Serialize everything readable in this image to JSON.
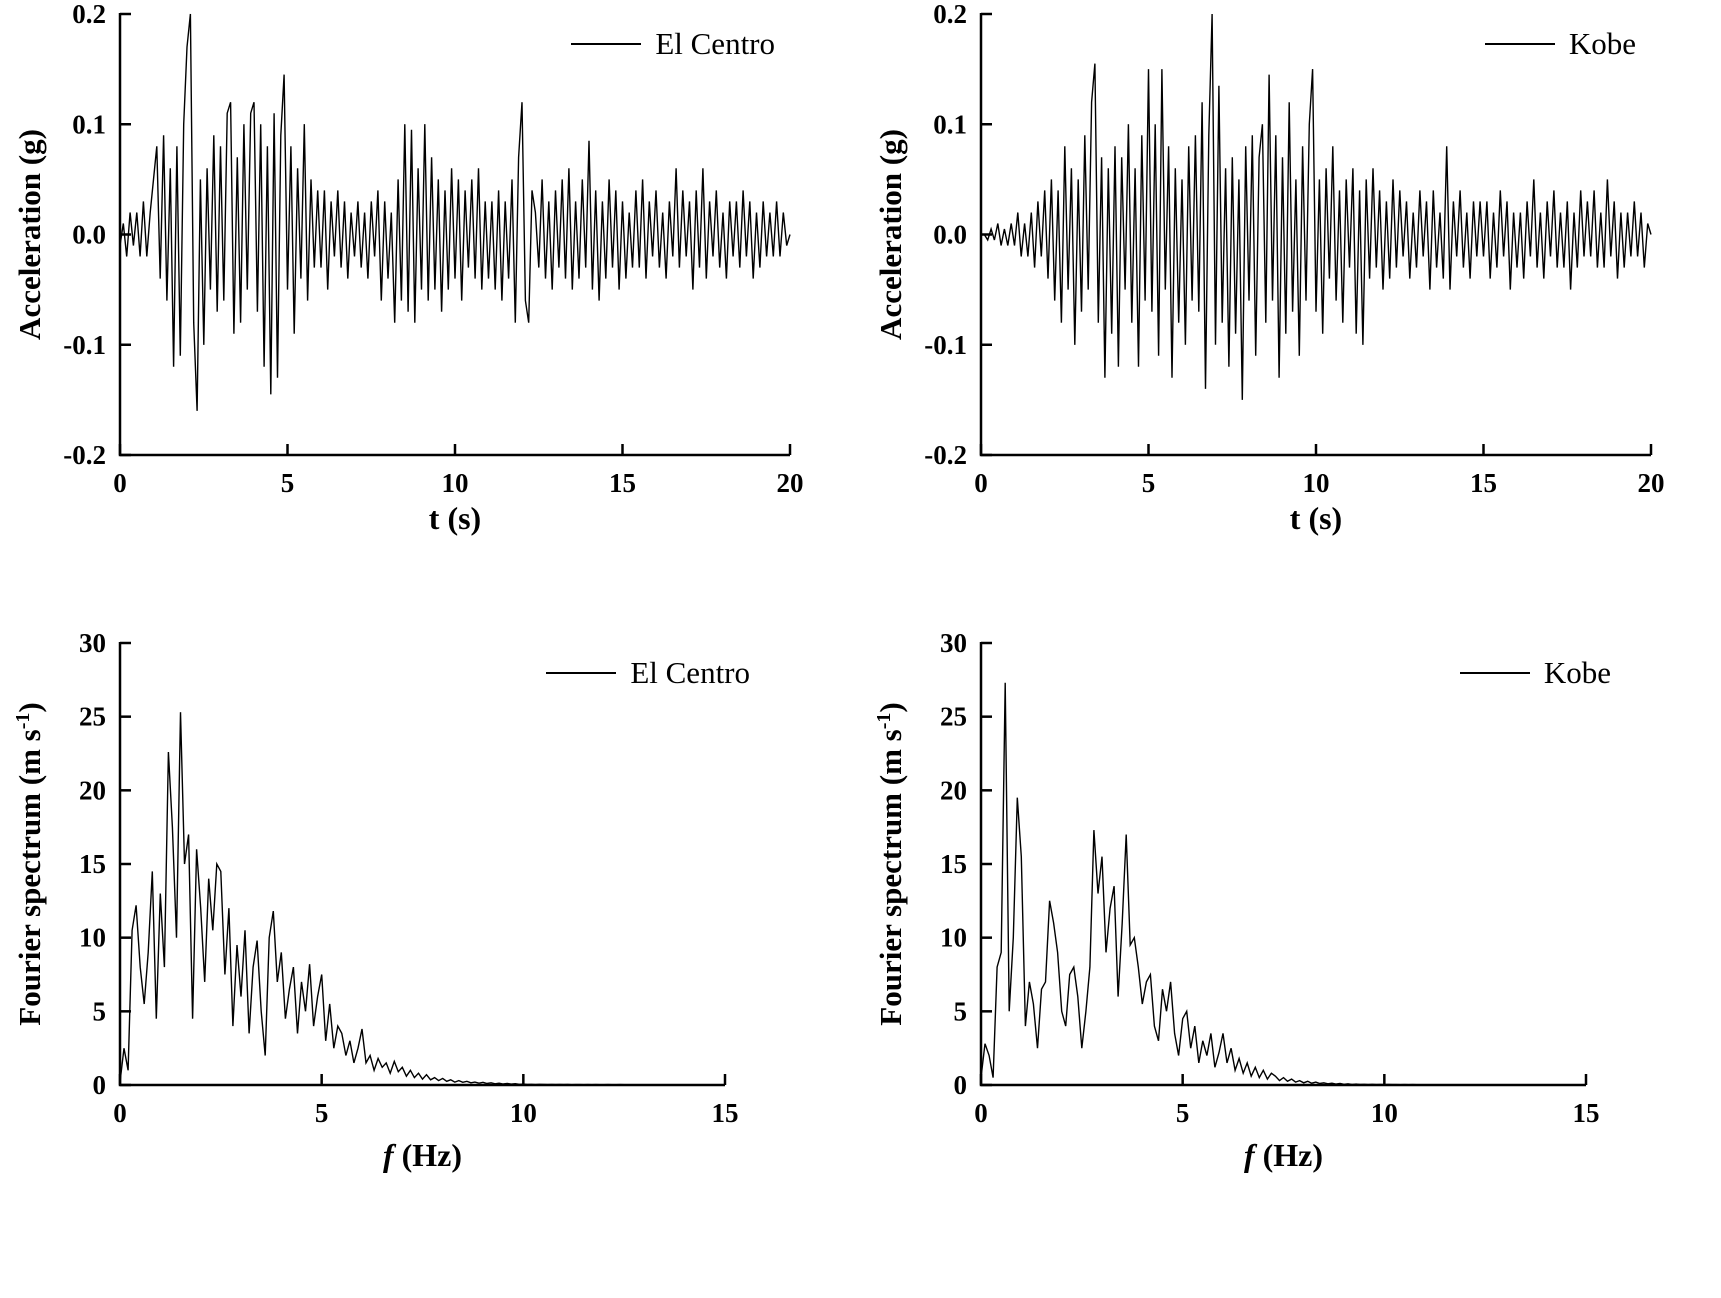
{
  "page": {
    "background": "#ffffff",
    "line_color": "#000000"
  },
  "chart_data": [
    {
      "id": "accel-el-centro",
      "type": "line",
      "legend": "El Centro",
      "xlabel_italic": "",
      "xlabel_rest": "t (s)",
      "ylabel_main": "Acceleration (g)",
      "ylabel_sup": "",
      "ylabel_close": "",
      "xlim": [
        0,
        20
      ],
      "ylim": [
        -0.2,
        0.2
      ],
      "xticks": {
        "values": [
          0,
          5,
          10,
          15,
          20
        ],
        "labels": [
          "0",
          "5",
          "10",
          "15",
          "20"
        ]
      },
      "yticks": {
        "values": [
          -0.2,
          -0.1,
          0,
          0.1,
          0.2
        ],
        "labels": [
          "-0.2",
          "-0.1",
          "0.0",
          "0.1",
          "0.2"
        ]
      },
      "grid": false,
      "legend_position": "top-right",
      "series": {
        "name": "El Centro",
        "x_start": 0,
        "x_step": 0.1,
        "values": [
          -0.01,
          0.01,
          -0.02,
          0.02,
          -0.01,
          0.02,
          -0.02,
          0.03,
          -0.02,
          0.02,
          0.05,
          0.08,
          -0.04,
          0.09,
          -0.06,
          0.06,
          -0.12,
          0.08,
          -0.11,
          0.1,
          0.17,
          0.2,
          -0.08,
          -0.16,
          0.05,
          -0.1,
          0.06,
          -0.05,
          0.09,
          -0.07,
          0.08,
          -0.06,
          0.11,
          0.12,
          -0.09,
          0.07,
          -0.08,
          0.1,
          -0.05,
          0.11,
          0.12,
          -0.07,
          0.1,
          -0.12,
          0.08,
          -0.145,
          0.11,
          -0.13,
          0.09,
          0.145,
          -0.05,
          0.08,
          -0.09,
          0.06,
          -0.04,
          0.1,
          -0.06,
          0.05,
          -0.03,
          0.04,
          -0.03,
          0.04,
          -0.05,
          0.03,
          -0.02,
          0.04,
          -0.03,
          0.03,
          -0.04,
          0.02,
          -0.02,
          0.03,
          -0.03,
          0.02,
          -0.04,
          0.03,
          -0.02,
          0.04,
          -0.06,
          0.03,
          -0.04,
          0.02,
          -0.08,
          0.05,
          -0.06,
          0.1,
          -0.07,
          0.095,
          -0.08,
          0.06,
          -0.05,
          0.1,
          -0.06,
          0.07,
          -0.05,
          0.05,
          -0.07,
          0.04,
          -0.05,
          0.06,
          -0.04,
          0.05,
          -0.06,
          0.04,
          -0.03,
          0.05,
          -0.04,
          0.06,
          -0.05,
          0.03,
          -0.04,
          0.03,
          -0.05,
          0.04,
          -0.06,
          0.03,
          -0.04,
          0.05,
          -0.08,
          0.07,
          0.12,
          -0.06,
          -0.08,
          0.04,
          0.02,
          -0.03,
          0.05,
          -0.04,
          0.03,
          -0.05,
          0.04,
          -0.03,
          0.05,
          -0.04,
          0.06,
          -0.05,
          0.03,
          -0.04,
          0.05,
          -0.03,
          0.085,
          -0.05,
          0.04,
          -0.06,
          0.03,
          -0.04,
          0.05,
          -0.03,
          0.04,
          -0.05,
          0.03,
          -0.04,
          0.02,
          -0.03,
          0.04,
          -0.03,
          0.05,
          -0.04,
          0.03,
          -0.02,
          0.04,
          -0.03,
          0.02,
          -0.04,
          0.03,
          -0.02,
          0.06,
          -0.03,
          0.04,
          -0.02,
          0.03,
          -0.05,
          0.04,
          -0.03,
          0.06,
          -0.04,
          0.03,
          -0.02,
          0.04,
          -0.03,
          0.02,
          -0.04,
          0.03,
          -0.02,
          0.03,
          -0.03,
          0.04,
          -0.02,
          0.03,
          -0.04,
          0.02,
          -0.03,
          0.03,
          -0.02,
          0.02,
          -0.02,
          0.03,
          -0.02,
          0.02,
          -0.01,
          0.0
        ]
      }
    },
    {
      "id": "accel-kobe",
      "type": "line",
      "legend": "Kobe",
      "xlabel_italic": "",
      "xlabel_rest": "t (s)",
      "ylabel_main": "Acceleration (g)",
      "ylabel_sup": "",
      "ylabel_close": "",
      "xlim": [
        0,
        20
      ],
      "ylim": [
        -0.2,
        0.2
      ],
      "xticks": {
        "values": [
          0,
          5,
          10,
          15,
          20
        ],
        "labels": [
          "0",
          "5",
          "10",
          "15",
          "20"
        ]
      },
      "yticks": {
        "values": [
          -0.2,
          -0.1,
          0,
          0.1,
          0.2
        ],
        "labels": [
          "-0.2",
          "-0.1",
          "0.0",
          "0.1",
          "0.2"
        ]
      },
      "grid": false,
      "legend_position": "top-right",
      "series": {
        "name": "Kobe",
        "x_start": 0,
        "x_step": 0.1,
        "values": [
          0.0,
          0.0,
          -0.005,
          0.005,
          -0.005,
          0.01,
          -0.01,
          0.005,
          -0.01,
          0.01,
          -0.01,
          0.02,
          -0.02,
          0.01,
          -0.02,
          0.02,
          -0.03,
          0.03,
          -0.02,
          0.04,
          -0.04,
          0.05,
          -0.06,
          0.04,
          -0.08,
          0.08,
          -0.05,
          0.06,
          -0.1,
          0.05,
          -0.07,
          0.09,
          -0.05,
          0.12,
          0.155,
          -0.08,
          0.07,
          -0.13,
          0.06,
          -0.09,
          0.08,
          -0.12,
          0.07,
          -0.05,
          0.1,
          -0.08,
          0.06,
          -0.12,
          0.09,
          -0.06,
          0.15,
          -0.07,
          0.1,
          -0.11,
          0.15,
          -0.05,
          0.08,
          -0.13,
          0.06,
          -0.08,
          0.05,
          -0.1,
          0.08,
          -0.06,
          0.09,
          -0.07,
          0.12,
          -0.14,
          0.09,
          0.2,
          -0.1,
          0.135,
          -0.08,
          0.06,
          -0.12,
          0.07,
          -0.09,
          0.05,
          -0.15,
          0.08,
          -0.06,
          0.09,
          -0.11,
          0.07,
          0.1,
          -0.08,
          0.145,
          -0.06,
          0.09,
          -0.13,
          0.07,
          -0.09,
          0.12,
          -0.07,
          0.05,
          -0.11,
          0.08,
          -0.06,
          0.1,
          0.15,
          -0.07,
          0.05,
          -0.09,
          0.06,
          -0.04,
          0.08,
          -0.06,
          0.04,
          -0.08,
          0.05,
          -0.03,
          0.06,
          -0.09,
          0.04,
          -0.1,
          0.05,
          -0.04,
          0.06,
          -0.03,
          0.04,
          -0.05,
          0.03,
          -0.04,
          0.05,
          -0.03,
          0.04,
          -0.02,
          0.03,
          -0.04,
          0.02,
          -0.03,
          0.04,
          -0.02,
          0.03,
          -0.05,
          0.04,
          -0.03,
          0.02,
          -0.04,
          0.08,
          -0.05,
          0.03,
          -0.02,
          0.04,
          -0.03,
          0.02,
          -0.04,
          0.03,
          -0.02,
          0.03,
          -0.02,
          0.03,
          -0.04,
          0.02,
          -0.03,
          0.04,
          -0.02,
          0.03,
          -0.05,
          0.02,
          -0.03,
          0.02,
          -0.04,
          0.03,
          -0.02,
          0.05,
          -0.03,
          0.02,
          -0.04,
          0.03,
          -0.02,
          0.04,
          -0.03,
          0.02,
          -0.03,
          0.03,
          -0.05,
          0.02,
          -0.03,
          0.04,
          -0.02,
          0.03,
          -0.02,
          0.04,
          -0.03,
          0.02,
          -0.03,
          0.05,
          -0.02,
          0.03,
          -0.04,
          0.02,
          -0.03,
          0.02,
          -0.02,
          0.03,
          -0.02,
          0.02,
          -0.03,
          0.01,
          0.0
        ]
      }
    },
    {
      "id": "fourier-el-centro",
      "type": "line",
      "legend": "El Centro",
      "xlabel_italic": "f",
      "xlabel_rest": " (Hz)",
      "ylabel_main": "Fourier spectrum  (m s",
      "ylabel_sup": "-1",
      "ylabel_close": ")",
      "xlim": [
        0,
        15
      ],
      "ylim": [
        0,
        30
      ],
      "xticks": {
        "values": [
          0,
          5,
          10,
          15
        ],
        "labels": [
          "0",
          "5",
          "10",
          "15"
        ]
      },
      "yticks": {
        "values": [
          0,
          5,
          10,
          15,
          20,
          25,
          30
        ],
        "labels": [
          "0",
          "5",
          "10",
          "15",
          "20",
          "25",
          "30"
        ]
      },
      "grid": false,
      "legend_position": "top-right",
      "series": {
        "name": "El Centro",
        "x_start": 0,
        "x_step": 0.1,
        "values": [
          0.2,
          2.5,
          1.0,
          10.5,
          12.2,
          8.0,
          5.5,
          9.0,
          14.5,
          4.5,
          13.0,
          8.0,
          22.6,
          17.5,
          10.0,
          25.3,
          15.0,
          17.0,
          4.5,
          16.0,
          12.0,
          7.0,
          14.0,
          10.5,
          15.0,
          14.5,
          7.5,
          12.0,
          4.0,
          9.5,
          6.0,
          10.5,
          3.5,
          8.0,
          9.8,
          5.0,
          2.0,
          10.0,
          11.8,
          7.0,
          9.0,
          4.5,
          6.5,
          8.0,
          3.5,
          7.0,
          5.0,
          8.2,
          4.0,
          6.0,
          7.5,
          3.0,
          5.5,
          2.5,
          4.0,
          3.5,
          2.0,
          3.0,
          1.5,
          2.5,
          3.8,
          1.5,
          2.0,
          1.0,
          1.8,
          1.2,
          1.5,
          0.8,
          1.6,
          0.9,
          1.2,
          0.6,
          1.0,
          0.5,
          0.8,
          0.4,
          0.7,
          0.35,
          0.5,
          0.3,
          0.45,
          0.25,
          0.35,
          0.2,
          0.3,
          0.18,
          0.25,
          0.15,
          0.2,
          0.12,
          0.18,
          0.1,
          0.15,
          0.08,
          0.12,
          0.07,
          0.1,
          0.06,
          0.09,
          0.05,
          0.06,
          0.04,
          0.05,
          0.03,
          0.05,
          0.04,
          0.03,
          0.04,
          0.03,
          0.04,
          0.03,
          0.04,
          0.02,
          0.03,
          0.03,
          0.02,
          0.03,
          0.02,
          0.03,
          0.02,
          0.02,
          0.03,
          0.02,
          0.02,
          0.03,
          0.02,
          0.02,
          0.02,
          0.02,
          0.02,
          0.02,
          0.02,
          0.02,
          0.02,
          0.02,
          0.02,
          0.02,
          0.02,
          0.02,
          0.02,
          0.02,
          0.02,
          0.02,
          0.02,
          0.02,
          0.02,
          0.02,
          0.02,
          0.02,
          0.02,
          0.02
        ]
      }
    },
    {
      "id": "fourier-kobe",
      "type": "line",
      "legend": "Kobe",
      "xlabel_italic": "f",
      "xlabel_rest": " (Hz)",
      "ylabel_main": "Fourier spectrum  (m s",
      "ylabel_sup": "-1",
      "ylabel_close": ")",
      "xlim": [
        0,
        15
      ],
      "ylim": [
        0,
        30
      ],
      "xticks": {
        "values": [
          0,
          5,
          10,
          15
        ],
        "labels": [
          "0",
          "5",
          "10",
          "15"
        ]
      },
      "yticks": {
        "values": [
          0,
          5,
          10,
          15,
          20,
          25,
          30
        ],
        "labels": [
          "0",
          "5",
          "10",
          "15",
          "20",
          "25",
          "30"
        ]
      },
      "grid": false,
      "legend_position": "top-right",
      "series": {
        "name": "Kobe",
        "x_start": 0,
        "x_step": 0.1,
        "values": [
          0.5,
          2.8,
          2.0,
          0.5,
          8.0,
          9.0,
          27.3,
          5.0,
          10.0,
          19.5,
          15.5,
          4.0,
          7.0,
          5.5,
          2.5,
          6.5,
          7.0,
          12.5,
          11.0,
          9.0,
          5.0,
          4.0,
          7.5,
          8.0,
          6.0,
          2.5,
          5.0,
          8.0,
          17.3,
          13.0,
          15.5,
          9.0,
          12.0,
          13.5,
          6.0,
          11.0,
          17.0,
          9.5,
          10.0,
          8.0,
          5.5,
          7.0,
          7.5,
          4.0,
          3.0,
          6.5,
          5.0,
          7.0,
          3.5,
          2.0,
          4.5,
          5.0,
          2.5,
          4.0,
          1.5,
          3.0,
          2.0,
          3.5,
          1.2,
          2.2,
          3.5,
          1.5,
          2.5,
          1.0,
          1.8,
          0.8,
          1.5,
          0.6,
          1.2,
          0.5,
          1.0,
          0.4,
          0.8,
          0.6,
          0.3,
          0.5,
          0.25,
          0.4,
          0.2,
          0.3,
          0.15,
          0.25,
          0.12,
          0.2,
          0.1,
          0.15,
          0.08,
          0.12,
          0.06,
          0.1,
          0.05,
          0.08,
          0.04,
          0.06,
          0.04,
          0.05,
          0.03,
          0.05,
          0.03,
          0.04,
          0.03,
          0.04,
          0.03,
          0.03,
          0.02,
          0.03,
          0.02,
          0.03,
          0.02,
          0.02,
          0.02,
          0.02,
          0.02,
          0.02,
          0.02,
          0.02,
          0.02,
          0.02,
          0.02,
          0.02,
          0.02,
          0.02,
          0.02,
          0.02,
          0.02,
          0.02,
          0.02,
          0.02,
          0.02,
          0.02,
          0.02,
          0.02,
          0.02,
          0.02,
          0.02,
          0.02,
          0.02,
          0.02,
          0.02,
          0.02,
          0.02,
          0.02,
          0.02,
          0.02,
          0.02,
          0.02,
          0.02,
          0.02,
          0.02,
          0.02,
          0.02
        ]
      }
    }
  ]
}
